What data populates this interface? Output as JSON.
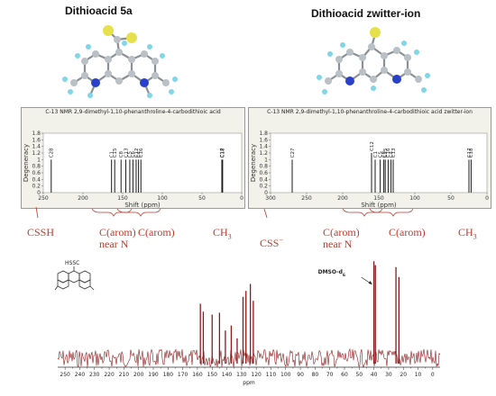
{
  "molecules": {
    "left_title": "Dithioacid 5a",
    "right_title": "Dithioacid zwitter-ion"
  },
  "left_panel": {
    "title": "C-13 NMR 2,9-dimethyl-1,10-phenanthroline-4-carbodithioic acid",
    "ylabel": "Degeneracy",
    "xlabel": "Shift (ppm)"
  },
  "right_panel": {
    "title": "C-13 NMR 2,9-dimethyl-1,10-phenanthroline-4-carbodithioic acid zwitter-ion",
    "ylabel": "Degeneracy",
    "xlabel": "Shift (ppm)"
  },
  "region_labels": {
    "cssh": "CSSH",
    "carom_near_n_1": "C(arom)",
    "near_n_1": "near N",
    "carom_1": "C(arom)",
    "ch3_1": "CH",
    "ch3_1_sub": "3",
    "css": "CSS",
    "css_sup": "−",
    "carom_near_n_2": "C(arom)",
    "near_n_2": "near N",
    "carom_2": "C(arom)",
    "ch3_2": "CH",
    "ch3_2_sub": "3"
  },
  "experimental": {
    "solvent_label": "DMSO-d",
    "solvent_sub": "6",
    "xlabel": "ppm",
    "struct_label": "HSSC"
  },
  "chart_data": [
    {
      "type": "bar",
      "title": "C-13 NMR 2,9-dimethyl-1,10-phenanthroline-4-carbodithioic acid",
      "xlabel": "Shift (ppm)",
      "ylabel": "Degeneracy",
      "xlim": [
        250,
        0
      ],
      "ylim": [
        0,
        1.8
      ],
      "y_ticks": [
        0,
        0.2,
        0.4,
        0.6,
        0.8,
        1,
        1.2,
        1.4,
        1.6,
        1.8
      ],
      "x_ticks": [
        250,
        200,
        150,
        100,
        50,
        0
      ],
      "peaks": [
        {
          "label": "C28",
          "x": 240,
          "y": 1
        },
        {
          "label": "C1",
          "x": 164,
          "y": 1
        },
        {
          "label": "C15",
          "x": 160,
          "y": 1
        },
        {
          "label": "C8",
          "x": 152,
          "y": 1
        },
        {
          "label": "C13",
          "x": 146,
          "y": 1
        },
        {
          "label": "C5",
          "x": 141,
          "y": 1
        },
        {
          "label": "C6",
          "x": 137,
          "y": 1
        },
        {
          "label": "C12",
          "x": 133,
          "y": 1
        },
        {
          "label": "C4",
          "x": 130,
          "y": 1
        },
        {
          "label": "C16",
          "x": 127,
          "y": 1
        },
        {
          "label": "C17",
          "x": 25,
          "y": 1
        },
        {
          "label": "C18",
          "x": 24,
          "y": 1
        }
      ]
    },
    {
      "type": "bar",
      "title": "C-13 NMR 2,9-dimethyl-1,10-phenanthroline-4-carbodithioic acid zwitter-ion",
      "xlabel": "Shift (ppm)",
      "ylabel": "Degeneracy",
      "xlim": [
        300,
        0
      ],
      "ylim": [
        0,
        1.8
      ],
      "y_ticks": [
        0,
        0.2,
        0.4,
        0.6,
        0.8,
        1,
        1.2,
        1.4,
        1.6,
        1.8
      ],
      "x_ticks": [
        300,
        250,
        200,
        150,
        100,
        50,
        0
      ],
      "peaks": [
        {
          "label": "C27",
          "x": 270,
          "y": 1
        },
        {
          "label": "C12",
          "x": 160,
          "y": 1.2
        },
        {
          "label": "C1",
          "x": 155,
          "y": 1
        },
        {
          "label": "C5",
          "x": 148,
          "y": 1
        },
        {
          "label": "C8",
          "x": 143,
          "y": 1
        },
        {
          "label": "C15",
          "x": 141,
          "y": 1
        },
        {
          "label": "C16",
          "x": 137,
          "y": 1
        },
        {
          "label": "C4",
          "x": 133,
          "y": 1
        },
        {
          "label": "C13",
          "x": 130,
          "y": 1
        },
        {
          "label": "C17",
          "x": 25,
          "y": 1
        },
        {
          "label": "C18",
          "x": 22,
          "y": 1
        }
      ]
    },
    {
      "type": "line",
      "title": "",
      "xlabel": "ppm",
      "xlim": [
        255,
        -5
      ],
      "x_ticks": [
        250,
        240,
        230,
        220,
        210,
        200,
        190,
        180,
        170,
        160,
        150,
        140,
        130,
        120,
        110,
        100,
        90,
        80,
        70,
        60,
        50,
        40,
        30,
        20,
        10,
        0
      ],
      "peaks": [
        {
          "x": 158,
          "height": 0.55
        },
        {
          "x": 156,
          "height": 0.47
        },
        {
          "x": 150,
          "height": 0.44
        },
        {
          "x": 145,
          "height": 0.46
        },
        {
          "x": 141,
          "height": 0.28
        },
        {
          "x": 137,
          "height": 0.33
        },
        {
          "x": 133,
          "height": 0.2
        },
        {
          "x": 129,
          "height": 0.62
        },
        {
          "x": 127,
          "height": 0.68
        },
        {
          "x": 124,
          "height": 0.75
        },
        {
          "x": 122,
          "height": 0.58
        },
        {
          "x": 40,
          "height": 0.98
        },
        {
          "x": 39,
          "height": 0.94
        },
        {
          "x": 25,
          "height": 0.92
        },
        {
          "x": 23,
          "height": 0.82
        }
      ]
    }
  ]
}
